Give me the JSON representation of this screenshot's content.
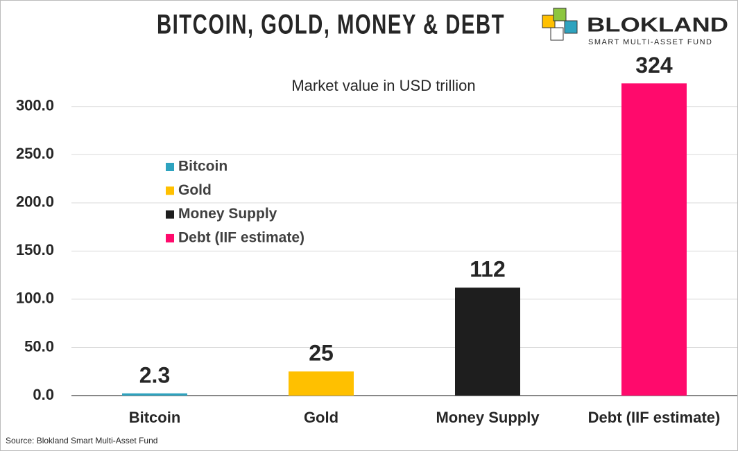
{
  "chart_data": {
    "type": "bar",
    "title": "BITCOIN, GOLD, MONEY & DEBT",
    "subtitle": "Market value in USD trillion",
    "brand": {
      "name": "BLOKLAND",
      "tagline": "SMART MULTI-ASSET FUND"
    },
    "source": "Source: Blokland Smart Multi-Asset Fund",
    "categories": [
      "Bitcoin",
      "Gold",
      "Money Supply",
      "Debt (IIF estimate)"
    ],
    "values": [
      2.3,
      25,
      112,
      324
    ],
    "colors": [
      "#2ea3bf",
      "#ffc000",
      "#1e1e1e",
      "#ff0a6c"
    ],
    "ylim": [
      0,
      330
    ],
    "yticks": [
      {
        "value": 0,
        "label": "0.0"
      },
      {
        "value": 50,
        "label": "50.0"
      },
      {
        "value": 100,
        "label": "100.0"
      },
      {
        "value": 150,
        "label": "150.0"
      },
      {
        "value": 200,
        "label": "200.0"
      },
      {
        "value": 250,
        "label": "250.0"
      },
      {
        "value": 300,
        "label": "300.0"
      }
    ],
    "grid": true,
    "legend": "upper left"
  }
}
